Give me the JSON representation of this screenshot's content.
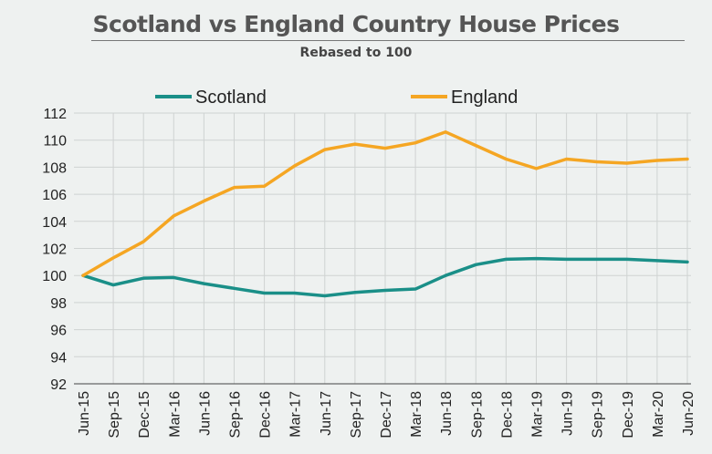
{
  "chart_data": {
    "type": "line",
    "title": "Scotland vs England Country House Prices",
    "subtitle": "Rebased to 100",
    "xlabel": "",
    "ylabel": "",
    "ylim": [
      92,
      112
    ],
    "yticks": [
      92,
      94,
      96,
      98,
      100,
      102,
      104,
      106,
      108,
      110,
      112
    ],
    "grid": true,
    "legend_position": "top",
    "categories": [
      "Jun-15",
      "Sep-15",
      "Dec-15",
      "Mar-16",
      "Jun-16",
      "Sep-16",
      "Dec-16",
      "Mar-17",
      "Jun-17",
      "Sep-17",
      "Dec-17",
      "Mar-18",
      "Jun-18",
      "Sep-18",
      "Dec-18",
      "Mar-19",
      "Jun-19",
      "Sep-19",
      "Dec-19",
      "Mar-20",
      "Jun-20"
    ],
    "series": [
      {
        "name": "Scotland",
        "color": "#1a8f88",
        "values": [
          100,
          99.3,
          99.8,
          99.85,
          99.4,
          99.05,
          98.7,
          98.7,
          98.5,
          98.75,
          98.9,
          99.0,
          100.0,
          100.8,
          101.2,
          101.25,
          101.2,
          101.2,
          101.2,
          101.1,
          101.0
        ]
      },
      {
        "name": "England",
        "color": "#f5a623",
        "values": [
          100,
          101.3,
          102.5,
          104.4,
          105.5,
          106.5,
          106.6,
          108.1,
          109.3,
          109.7,
          109.4,
          109.8,
          110.6,
          109.6,
          108.6,
          107.9,
          108.6,
          108.4,
          108.3,
          108.5,
          108.6
        ]
      }
    ]
  }
}
